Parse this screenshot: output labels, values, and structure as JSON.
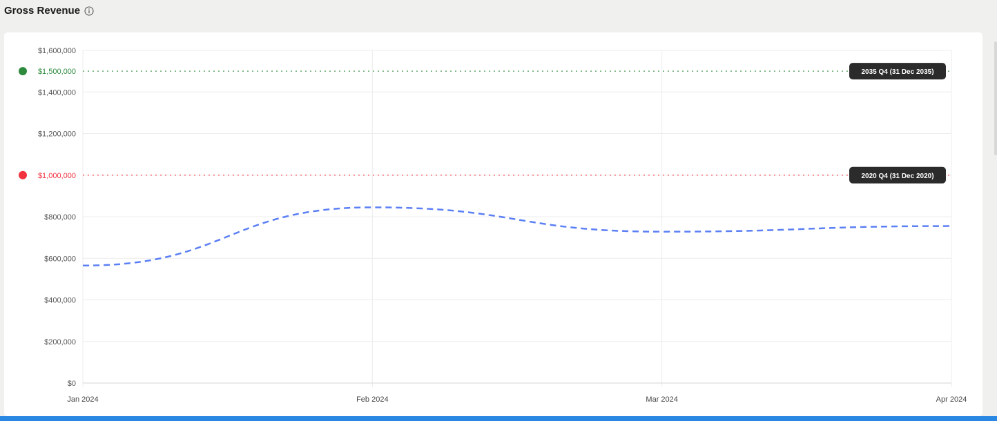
{
  "header": {
    "title": "Gross Revenue",
    "info_icon": "info-circle-icon"
  },
  "chart_data": {
    "type": "line",
    "x": [
      "Jan 2024",
      "Feb 2024",
      "Mar 2024",
      "Apr 2024"
    ],
    "xlabel": "",
    "ylabel": "",
    "ylim": [
      0,
      1600000
    ],
    "yticks": [
      "$0",
      "$200,000",
      "$400,000",
      "$600,000",
      "$800,000",
      "$1,000,000",
      "$1,200,000",
      "$1,400,000",
      "$1,600,000"
    ],
    "grid": true,
    "series": [
      {
        "values": [
          565000,
          845000,
          728000,
          755000
        ],
        "color": "#5b7ff5",
        "style": "dashed"
      }
    ],
    "reference_lines": [
      {
        "value": 1500000,
        "label": "$1,500,000",
        "tag": "2035 Q4 (31 Dec 2035)",
        "color": "#2e8b3e"
      },
      {
        "value": 1000000,
        "label": "$1,000,000",
        "tag": "2020 Q4 (31 Dec 2020)",
        "color": "#f2323f"
      }
    ]
  }
}
